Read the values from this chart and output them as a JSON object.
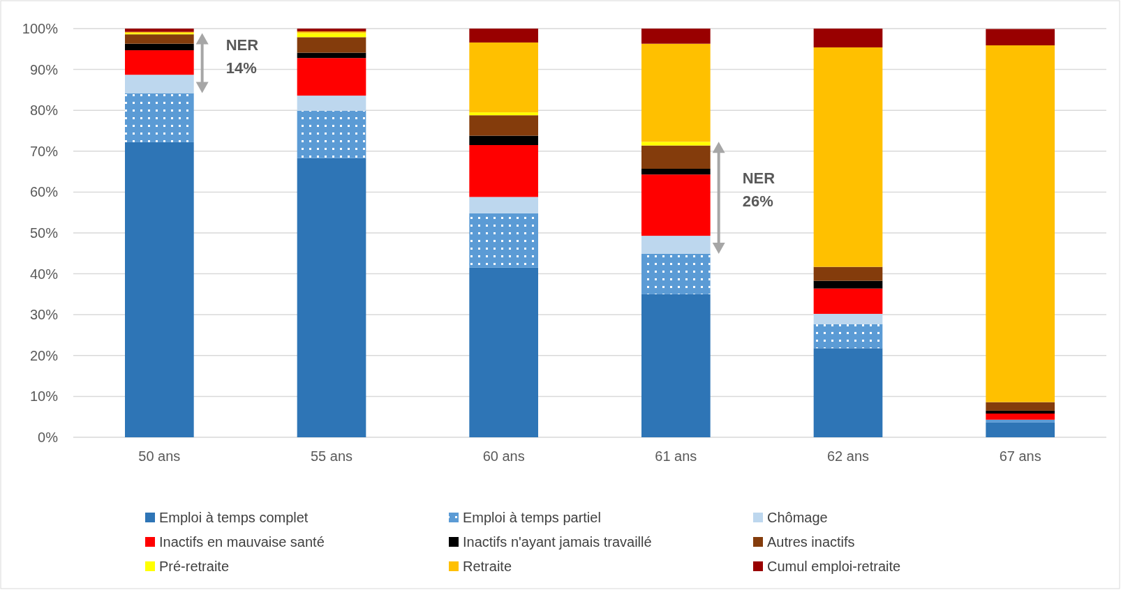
{
  "chart_data": {
    "type": "bar",
    "stacked": true,
    "categories": [
      "50 ans",
      "55 ans",
      "60 ans",
      "61 ans",
      "62 ans",
      "67 ans"
    ],
    "ylim": [
      0,
      100
    ],
    "yticks": [
      {
        "value": 0,
        "label": "0%"
      },
      {
        "value": 10,
        "label": "10%"
      },
      {
        "value": 20,
        "label": "20%"
      },
      {
        "value": 30,
        "label": "30%"
      },
      {
        "value": 40,
        "label": "40%"
      },
      {
        "value": 50,
        "label": "50%"
      },
      {
        "value": 60,
        "label": "60%"
      },
      {
        "value": 70,
        "label": "70%"
      },
      {
        "value": 80,
        "label": "80%"
      },
      {
        "value": 90,
        "label": "90%"
      },
      {
        "value": 100,
        "label": "100%"
      }
    ],
    "grid": "y",
    "legend": "bottom",
    "series": [
      {
        "name": "Emploi à temps complet",
        "color": "#2e75b6",
        "values": [
          72.2,
          68.3,
          41.5,
          35.0,
          21.8,
          3.6
        ]
      },
      {
        "name": "Emploi à temps partiel",
        "color": "#5b9bd5",
        "values": [
          12.0,
          11.6,
          13.3,
          9.9,
          5.9,
          0.7
        ]
      },
      {
        "name": "Chômage",
        "color": "#bdd7ee",
        "values": [
          4.5,
          3.7,
          4.0,
          4.4,
          2.5,
          null
        ]
      },
      {
        "name": "Inactifs en mauvaise santé",
        "color": "#ff0000",
        "values": [
          6.0,
          9.2,
          12.7,
          15.0,
          6.2,
          1.5
        ]
      },
      {
        "name": "Inactifs n'ayant jamais travaillé",
        "color": "#000000",
        "values": [
          1.6,
          1.3,
          2.3,
          1.4,
          1.9,
          0.7
        ]
      },
      {
        "name": "Autres inactifs",
        "color": "#843c0c",
        "values": [
          2.3,
          3.8,
          5.0,
          5.7,
          3.4,
          2.1
        ]
      },
      {
        "name": "Pré-retraite",
        "color": "#ffff00",
        "values": [
          0.3,
          1.0,
          0.7,
          0.9,
          0,
          0
        ]
      },
      {
        "name": "Retraite",
        "color": "#ffc000",
        "values": [
          0.3,
          0.4,
          17.1,
          24.0,
          53.7,
          87.3
        ]
      },
      {
        "name": "Cumul emploi-retraite",
        "color": "#990000",
        "values": [
          0.8,
          0.7,
          3.4,
          3.7,
          4.6,
          4.0
        ]
      }
    ],
    "annotations": [
      "NER\n14%",
      "NER\n26%"
    ]
  }
}
